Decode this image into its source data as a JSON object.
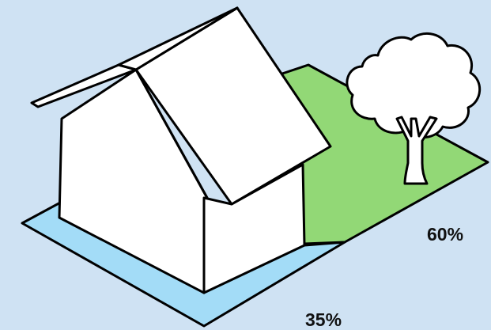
{
  "colors": {
    "background": "#cfe2f3",
    "house_footprint": "#a3dcf7",
    "garden": "#92d876",
    "house": "#ffffff",
    "outline": "#000000"
  },
  "icons": [
    "house-icon",
    "tree-icon"
  ],
  "areas": {
    "garden": {
      "percent_label": "60%",
      "value": 60
    },
    "house_footprint": {
      "percent_label": "35%",
      "value": 35
    }
  }
}
